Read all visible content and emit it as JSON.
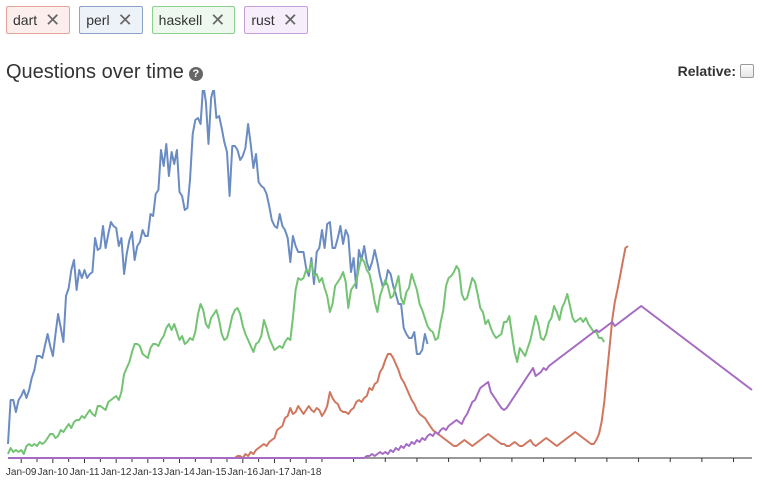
{
  "tags": [
    {
      "label": "dart",
      "color": "#e4a598",
      "bg": "#fbeeec"
    },
    {
      "label": "perl",
      "color": "#8aa3c9",
      "bg": "#edf2f9"
    },
    {
      "label": "haskell",
      "color": "#8fcf8f",
      "bg": "#eef8ee"
    },
    {
      "label": "rust",
      "color": "#c6a1d6",
      "bg": "#f6eefa"
    }
  ],
  "remove_symbol": "✕",
  "header": {
    "title": "Questions over time",
    "help_symbol": "?",
    "relative_label": "Relative:"
  },
  "chart_data": {
    "type": "line",
    "x_start": "2008-08",
    "x_interval": "month",
    "x_ticks": [
      {
        "label": "Jan-09",
        "date": "2009-01"
      },
      {
        "label": "Jan-10",
        "date": "2010-01"
      },
      {
        "label": "Jan-11",
        "date": "2011-01"
      },
      {
        "label": "Jan-12",
        "date": "2012-01"
      },
      {
        "label": "Jan-13",
        "date": "2013-01"
      },
      {
        "label": "Jan-14",
        "date": "2014-01"
      },
      {
        "label": "Jan-15",
        "date": "2015-01"
      },
      {
        "label": "Jan-16",
        "date": "2016-01"
      },
      {
        "label": "Jan-17",
        "date": "2017-01"
      },
      {
        "label": "Jan-18",
        "date": "2018-01"
      }
    ],
    "ylim": [
      0,
      360
    ],
    "grid": false,
    "series": [
      {
        "name": "perl",
        "color": "#6b8cc2",
        "values": [
          14,
          58,
          58,
          46,
          58,
          62,
          68,
          60,
          68,
          80,
          88,
          102,
          102,
          100,
          112,
          124,
          112,
          102,
          124,
          144,
          130,
          116,
          162,
          170,
          188,
          198,
          168,
          188,
          180,
          188,
          180,
          184,
          186,
          220,
          208,
          210,
          232,
          210,
          224,
          236,
          232,
          230,
          212,
          220,
          184,
          204,
          218,
          226,
          198,
          212,
          216,
          228,
          222,
          222,
          244,
          242,
          264,
          268,
          308,
          292,
          314,
          282,
          306,
          294,
          308,
          266,
          262,
          248,
          250,
          278,
          324,
          338,
          340,
          334,
          374,
          356,
          314,
          360,
          370,
          340,
          342,
          330,
          316,
          306,
          262,
          312,
          312,
          308,
          298,
          302,
          310,
          334,
          314,
          290,
          304,
          276,
          272,
          270,
          264,
          252,
          238,
          232,
          230,
          244,
          232,
          228,
          220,
          196,
          222,
          212,
          206,
          206,
          206,
          190,
          182,
          200,
          174,
          206,
          210,
          228,
          210,
          234,
          236,
          210,
          210,
          220,
          232,
          214,
          228,
          222,
          186,
          200,
          170,
          208,
          198,
          212,
          196,
          188,
          196,
          208,
          196,
          182,
          172,
          174,
          188,
          184,
          172,
          164,
          154,
          154,
          130,
          124,
          120,
          120,
          126,
          104,
          104,
          108,
          124,
          114
        ]
      },
      {
        "name": "haskell",
        "color": "#73c373",
        "values": [
          4,
          10,
          6,
          8,
          6,
          8,
          4,
          12,
          14,
          12,
          14,
          12,
          16,
          14,
          16,
          20,
          24,
          24,
          20,
          22,
          28,
          26,
          30,
          34,
          30,
          36,
          38,
          38,
          42,
          40,
          44,
          48,
          44,
          42,
          52,
          52,
          50,
          48,
          56,
          58,
          60,
          62,
          58,
          66,
          84,
          90,
          96,
          106,
          114,
          114,
          112,
          104,
          102,
          100,
          110,
          114,
          114,
          112,
          118,
          122,
          130,
          134,
          128,
          134,
          126,
          118,
          122,
          114,
          116,
          120,
          118,
          126,
          144,
          154,
          148,
          134,
          130,
          140,
          144,
          148,
          138,
          124,
          118,
          120,
          130,
          142,
          148,
          150,
          144,
          132,
          124,
          118,
          112,
          106,
          114,
          116,
          122,
          138,
          130,
          120,
          114,
          108,
          110,
          112,
          110,
          116,
          120,
          118,
          140,
          168,
          180,
          178,
          180,
          188,
          186,
          196,
          182,
          184,
          176,
          180,
          170,
          162,
          146,
          154,
          172,
          176,
          180,
          186,
          176,
          150,
          168,
          172,
          176,
          190,
          200,
          196,
          188,
          184,
          172,
          156,
          146,
          162,
          170,
          178,
          172,
          160,
          162,
          172,
          182,
          160,
          154,
          166,
          170,
          184,
          176,
          168,
          154,
          148,
          140,
          132,
          128,
          126,
          118,
          120,
          136,
          148,
          172,
          180,
          182,
          186,
          192,
          188,
          164,
          158,
          160,
          170,
          180,
          176,
          164,
          150,
          146,
          134,
          138,
          130,
          124,
          120,
          122,
          124,
          136,
          136,
          142,
          124,
          106,
          96,
          110,
          106,
          102,
          110,
          118,
          130,
          142,
          134,
          120,
          118,
          124,
          136,
          140,
          152,
          146,
          138,
          150,
          156,
          164,
          152,
          140,
          136,
          138,
          140,
          136,
          140,
          134,
          130,
          126,
          126,
          120,
          120,
          116
        ]
      },
      {
        "name": "dart",
        "color": "#d0765e",
        "values": [
          0,
          0,
          0,
          0,
          0,
          0,
          0,
          0,
          0,
          0,
          0,
          0,
          0,
          0,
          0,
          0,
          0,
          0,
          0,
          0,
          0,
          0,
          0,
          0,
          0,
          0,
          0,
          0,
          0,
          0,
          0,
          0,
          0,
          0,
          0,
          0,
          0,
          0,
          0,
          0,
          0,
          0,
          0,
          0,
          0,
          0,
          0,
          0,
          0,
          0,
          0,
          0,
          0,
          0,
          0,
          0,
          0,
          0,
          0,
          0,
          0,
          0,
          0,
          0,
          0,
          0,
          0,
          0,
          0,
          0,
          0,
          0,
          0,
          0,
          0,
          0,
          0,
          0,
          0,
          0,
          0,
          0,
          0,
          0,
          0,
          0,
          0,
          2,
          2,
          0,
          4,
          2,
          6,
          4,
          8,
          10,
          12,
          14,
          12,
          16,
          18,
          20,
          28,
          30,
          32,
          40,
          42,
          50,
          44,
          46,
          52,
          48,
          44,
          48,
          52,
          48,
          46,
          50,
          48,
          42,
          46,
          52,
          66,
          60,
          56,
          54,
          48,
          46,
          46,
          44,
          48,
          50,
          56,
          58,
          56,
          60,
          62,
          70,
          68,
          74,
          76,
          86,
          90,
          98,
          104,
          104,
          100,
          94,
          88,
          80,
          76,
          70,
          64,
          58,
          54,
          48,
          44,
          42,
          40,
          36,
          32,
          28,
          26,
          24,
          22,
          20,
          18,
          16,
          14,
          12,
          12,
          14,
          16,
          18,
          16,
          14,
          12,
          14,
          16,
          18,
          20,
          22,
          24,
          22,
          20,
          18,
          16,
          14,
          14,
          12,
          12,
          14,
          16,
          14,
          12,
          12,
          14,
          16,
          18,
          14,
          12,
          14,
          16,
          18,
          20,
          18,
          16,
          14,
          12,
          14,
          16,
          18,
          20,
          22,
          24,
          26,
          24,
          22,
          20,
          18,
          16,
          14,
          14,
          18,
          24,
          36,
          56,
          84,
          110,
          138,
          156,
          168,
          182,
          196,
          210,
          212
        ]
      },
      {
        "name": "rust",
        "color": "#a56bc2",
        "values": [
          0,
          0,
          0,
          0,
          0,
          0,
          0,
          0,
          0,
          0,
          0,
          0,
          0,
          0,
          0,
          0,
          0,
          0,
          0,
          0,
          0,
          0,
          0,
          0,
          0,
          0,
          0,
          0,
          0,
          0,
          0,
          0,
          0,
          0,
          0,
          0,
          0,
          0,
          0,
          0,
          0,
          0,
          0,
          0,
          0,
          0,
          0,
          0,
          0,
          0,
          0,
          0,
          0,
          0,
          0,
          0,
          0,
          0,
          0,
          0,
          0,
          0,
          0,
          0,
          0,
          0,
          0,
          0,
          0,
          0,
          0,
          0,
          0,
          0,
          0,
          0,
          0,
          0,
          0,
          0,
          0,
          0,
          0,
          0,
          0,
          0,
          0,
          0,
          0,
          0,
          0,
          0,
          0,
          0,
          0,
          0,
          0,
          0,
          0,
          0,
          0,
          0,
          0,
          0,
          0,
          0,
          0,
          0,
          0,
          0,
          0,
          0,
          0,
          0,
          0,
          0,
          0,
          0,
          0,
          0,
          0,
          0,
          0,
          0,
          0,
          0,
          0,
          0,
          0,
          0,
          0,
          0,
          0,
          0,
          0,
          0,
          2,
          2,
          4,
          2,
          4,
          6,
          4,
          6,
          4,
          8,
          6,
          10,
          8,
          12,
          10,
          14,
          12,
          16,
          14,
          18,
          16,
          20,
          18,
          22,
          24,
          22,
          26,
          24,
          28,
          30,
          28,
          32,
          34,
          36,
          38,
          36,
          34,
          40,
          44,
          50,
          56,
          58,
          64,
          70,
          72,
          74,
          76,
          66,
          62,
          58,
          54,
          50,
          48,
          50,
          54,
          58,
          62,
          66,
          70,
          74,
          78,
          82,
          86,
          90,
          82,
          84,
          86,
          90,
          88,
          92,
          94,
          96,
          98,
          100,
          102,
          104,
          106,
          108,
          110,
          112,
          114,
          116,
          118,
          120,
          122,
          124,
          126,
          128,
          126,
          128,
          130,
          132,
          134,
          136,
          132,
          134,
          136,
          138,
          140,
          142,
          144,
          146,
          148,
          150,
          152,
          150,
          148,
          146,
          144,
          142,
          140,
          138,
          136,
          134,
          132,
          130,
          128,
          126,
          124,
          122,
          120,
          118,
          116,
          114,
          112,
          110,
          108,
          106,
          104,
          102,
          100,
          98,
          96,
          94,
          92,
          90,
          88,
          86,
          84,
          82,
          80,
          78,
          76,
          74,
          72,
          70,
          68
        ]
      }
    ]
  }
}
